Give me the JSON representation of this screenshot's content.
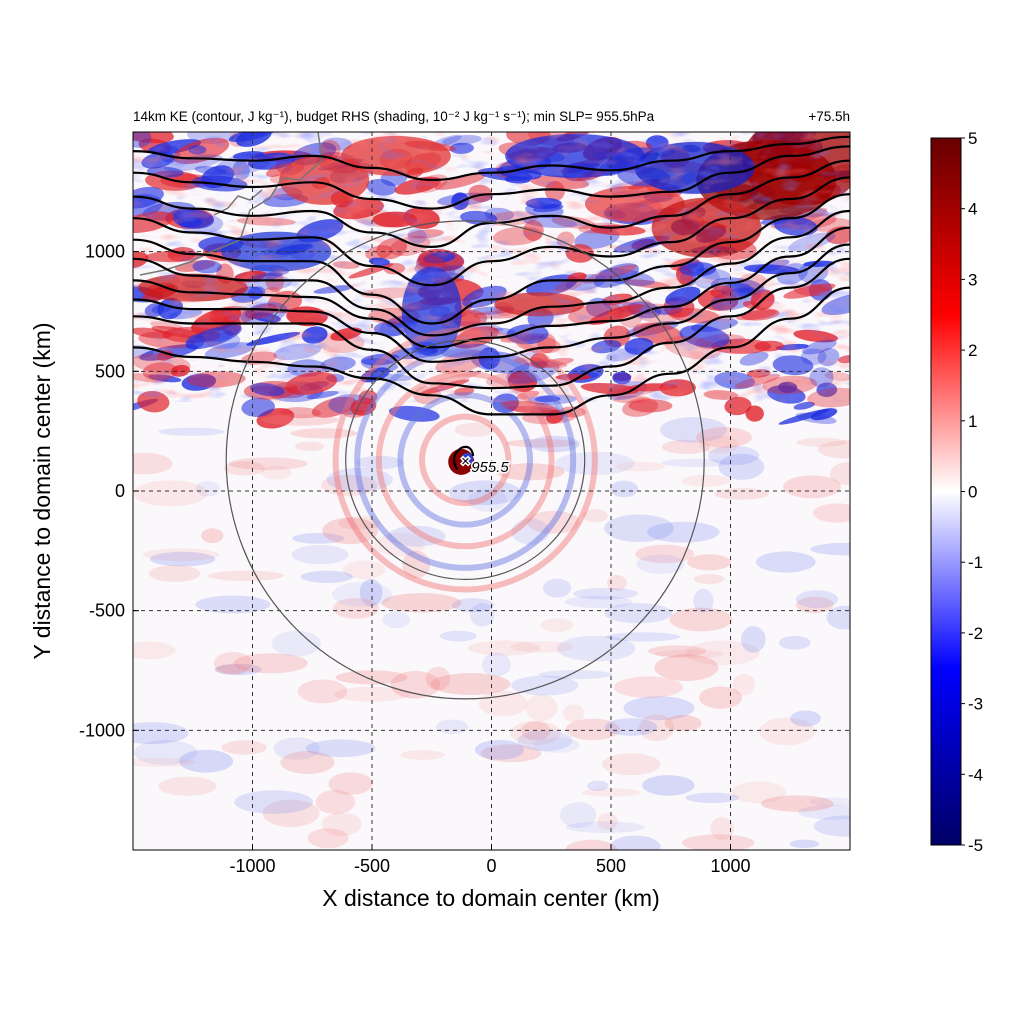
{
  "chart_data": {
    "type": "heatmap",
    "title": "14km KE (contour, J kg⁻¹), budget RHS (shading, 10⁻² J kg⁻¹ s⁻¹); min SLP= 955.5hPa",
    "title_right": "+75.5h",
    "xlabel": "X distance to domain center (km)",
    "ylabel": "Y distance to domain center (km)",
    "xlim": [
      -1500,
      1500
    ],
    "ylim": [
      -1500,
      1500
    ],
    "x_ticks": [
      -1000,
      -500,
      0,
      500,
      1000
    ],
    "y_ticks": [
      -1000,
      -500,
      0,
      500,
      1000
    ],
    "grid": "dashed at ticks",
    "colorbar": {
      "min": -5,
      "max": 5,
      "ticks": [
        5,
        4,
        3,
        2,
        1,
        0,
        -1,
        -2,
        -3,
        -4,
        -5
      ],
      "colormap": [
        "#000066",
        "#0000ff",
        "#ffffff",
        "#ff0000",
        "#660000"
      ]
    },
    "storm_center": {
      "x": -110,
      "y": 130,
      "label": "955.5",
      "marker": "×"
    },
    "range_rings": [
      {
        "center_x": -110,
        "center_y": 130,
        "radius": 500
      },
      {
        "center_x": -110,
        "center_y": 130,
        "radius": 1000
      }
    ],
    "ke_contours_y_levels": [
      [
        1420,
        1390,
        1380,
        1400,
        1350,
        1300,
        1330,
        1360,
        1340,
        1380,
        1420,
        1450,
        1480
      ],
      [
        1330,
        1290,
        1270,
        1290,
        1220,
        1180,
        1240,
        1260,
        1230,
        1250,
        1330,
        1400,
        1440
      ],
      [
        1230,
        1180,
        1150,
        1170,
        1080,
        1020,
        1120,
        1150,
        1100,
        1150,
        1240,
        1310,
        1380
      ],
      [
        1140,
        1080,
        1050,
        1060,
        940,
        860,
        960,
        1020,
        980,
        1040,
        1140,
        1220,
        1310
      ],
      [
        1050,
        990,
        960,
        960,
        820,
        700,
        800,
        880,
        880,
        940,
        1040,
        1140,
        1240
      ],
      [
        970,
        900,
        880,
        880,
        760,
        650,
        700,
        770,
        790,
        850,
        950,
        1060,
        1170
      ],
      [
        880,
        830,
        820,
        810,
        720,
        600,
        640,
        690,
        710,
        770,
        870,
        980,
        1100
      ],
      [
        800,
        760,
        760,
        750,
        660,
        540,
        560,
        600,
        640,
        700,
        800,
        910,
        1030
      ],
      [
        730,
        700,
        700,
        700,
        590,
        450,
        430,
        440,
        520,
        620,
        730,
        850,
        970
      ],
      [
        600,
        560,
        540,
        520,
        470,
        400,
        320,
        320,
        400,
        490,
        600,
        720,
        850
      ]
    ]
  }
}
